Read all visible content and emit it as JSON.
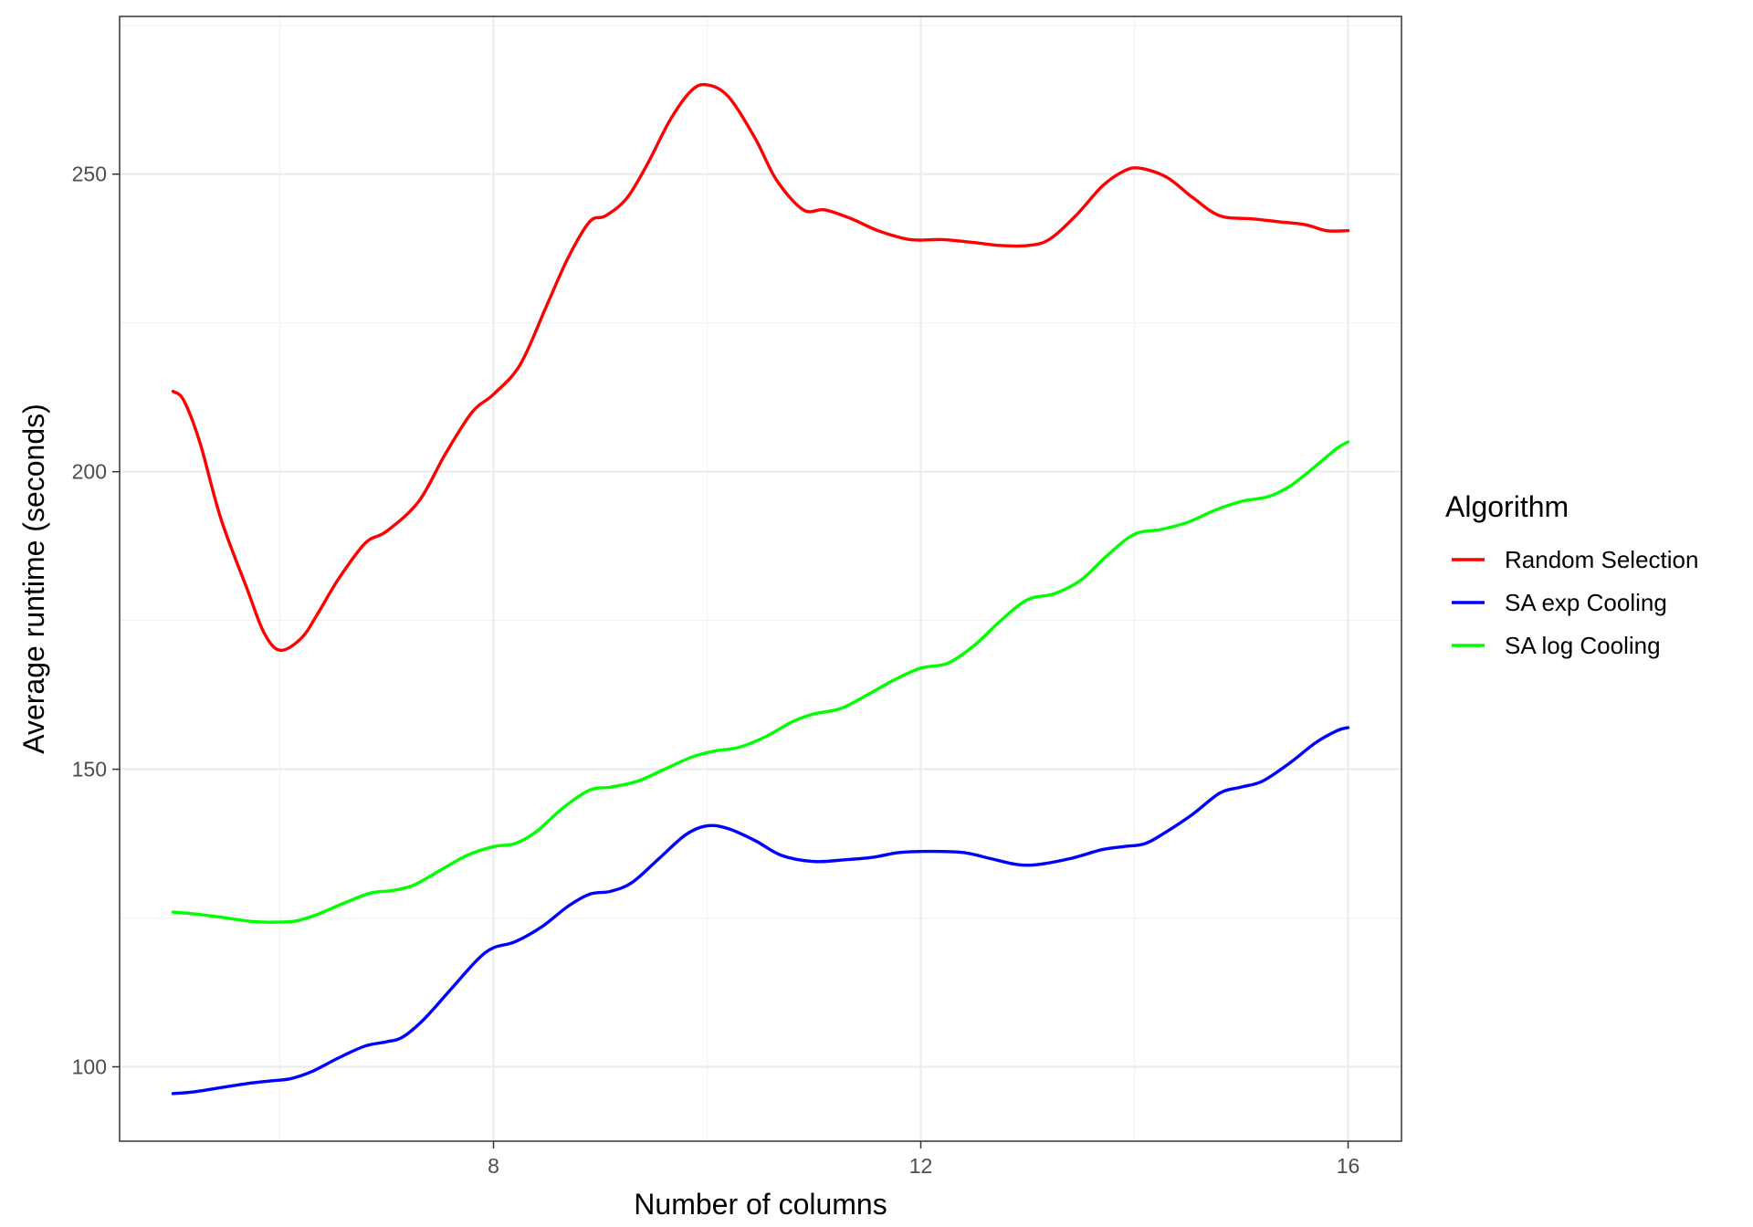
{
  "chart_data": {
    "type": "line",
    "title": "",
    "xlabel": "Number of columns",
    "ylabel": "Average runtime (seconds)",
    "xlim": [
      4.5,
      16.5
    ],
    "ylim": [
      87.5,
      276.5
    ],
    "x_ticks": [
      8,
      12,
      16
    ],
    "y_ticks": [
      100,
      150,
      200,
      250
    ],
    "x_tick_labels": [
      "8",
      "12",
      "16"
    ],
    "y_tick_labels": [
      "100",
      "150",
      "200",
      "250"
    ],
    "grid": true,
    "legend": {
      "title": "Algorithm",
      "position": "right"
    },
    "series": [
      {
        "name": "Random Selection",
        "color": "#ff0000",
        "points": [
          [
            5,
            213.5
          ],
          [
            5.1,
            212
          ],
          [
            5.25,
            205
          ],
          [
            5.45,
            192
          ],
          [
            5.7,
            180
          ],
          [
            5.85,
            173
          ],
          [
            6,
            170
          ],
          [
            6.2,
            172
          ],
          [
            6.35,
            176
          ],
          [
            6.55,
            182
          ],
          [
            6.8,
            188
          ],
          [
            7,
            190
          ],
          [
            7.3,
            195
          ],
          [
            7.55,
            203
          ],
          [
            7.8,
            210
          ],
          [
            8,
            213
          ],
          [
            8.25,
            218
          ],
          [
            8.5,
            228
          ],
          [
            8.7,
            236
          ],
          [
            8.9,
            242
          ],
          [
            9.05,
            243
          ],
          [
            9.25,
            246
          ],
          [
            9.45,
            252
          ],
          [
            9.65,
            259
          ],
          [
            9.85,
            264
          ],
          [
            10,
            265
          ],
          [
            10.2,
            263
          ],
          [
            10.45,
            256
          ],
          [
            10.65,
            249
          ],
          [
            10.9,
            244
          ],
          [
            11.1,
            244
          ],
          [
            11.35,
            242.5
          ],
          [
            11.6,
            240.5
          ],
          [
            11.9,
            239
          ],
          [
            12.2,
            239
          ],
          [
            12.5,
            238.5
          ],
          [
            12.75,
            238
          ],
          [
            13,
            238
          ],
          [
            13.2,
            239
          ],
          [
            13.45,
            243
          ],
          [
            13.7,
            248
          ],
          [
            13.9,
            250.5
          ],
          [
            14.05,
            251
          ],
          [
            14.3,
            249.5
          ],
          [
            14.55,
            246
          ],
          [
            14.8,
            243
          ],
          [
            15.1,
            242.5
          ],
          [
            15.35,
            242
          ],
          [
            15.6,
            241.5
          ],
          [
            15.8,
            240.5
          ],
          [
            16,
            240.5
          ]
        ]
      },
      {
        "name": "SA exp Cooling",
        "color": "#0000ff",
        "points": [
          [
            5,
            95.5
          ],
          [
            5.2,
            95.8
          ],
          [
            5.45,
            96.5
          ],
          [
            5.7,
            97.2
          ],
          [
            5.9,
            97.6
          ],
          [
            6.1,
            98
          ],
          [
            6.3,
            99.2
          ],
          [
            6.55,
            101.5
          ],
          [
            6.8,
            103.5
          ],
          [
            7,
            104.2
          ],
          [
            7.15,
            105
          ],
          [
            7.35,
            108
          ],
          [
            7.6,
            113
          ],
          [
            7.85,
            118
          ],
          [
            8,
            120
          ],
          [
            8.2,
            121
          ],
          [
            8.45,
            123.5
          ],
          [
            8.7,
            127
          ],
          [
            8.9,
            129
          ],
          [
            9.1,
            129.5
          ],
          [
            9.3,
            131
          ],
          [
            9.55,
            135
          ],
          [
            9.8,
            139
          ],
          [
            10,
            140.5
          ],
          [
            10.2,
            140
          ],
          [
            10.45,
            138
          ],
          [
            10.7,
            135.5
          ],
          [
            11,
            134.5
          ],
          [
            11.3,
            134.8
          ],
          [
            11.55,
            135.2
          ],
          [
            11.8,
            136
          ],
          [
            12.1,
            136.2
          ],
          [
            12.4,
            136
          ],
          [
            12.65,
            135
          ],
          [
            12.9,
            134
          ],
          [
            13.1,
            134
          ],
          [
            13.4,
            135
          ],
          [
            13.7,
            136.5
          ],
          [
            13.9,
            137
          ],
          [
            14.1,
            137.5
          ],
          [
            14.3,
            139.5
          ],
          [
            14.55,
            142.5
          ],
          [
            14.8,
            146
          ],
          [
            15,
            147
          ],
          [
            15.2,
            148
          ],
          [
            15.45,
            151
          ],
          [
            15.7,
            154.5
          ],
          [
            15.9,
            156.5
          ],
          [
            16,
            157
          ]
        ]
      },
      {
        "name": "SA log Cooling",
        "color": "#00ff00",
        "points": [
          [
            5,
            126
          ],
          [
            5.25,
            125.6
          ],
          [
            5.5,
            125
          ],
          [
            5.75,
            124.4
          ],
          [
            5.95,
            124.3
          ],
          [
            6.15,
            124.5
          ],
          [
            6.35,
            125.6
          ],
          [
            6.6,
            127.5
          ],
          [
            6.85,
            129.2
          ],
          [
            7.05,
            129.6
          ],
          [
            7.25,
            130.5
          ],
          [
            7.5,
            133
          ],
          [
            7.75,
            135.5
          ],
          [
            8,
            137
          ],
          [
            8.2,
            137.5
          ],
          [
            8.4,
            139.5
          ],
          [
            8.65,
            143.5
          ],
          [
            8.9,
            146.5
          ],
          [
            9.1,
            147
          ],
          [
            9.35,
            148
          ],
          [
            9.6,
            150
          ],
          [
            9.85,
            152
          ],
          [
            10.05,
            153
          ],
          [
            10.3,
            153.7
          ],
          [
            10.55,
            155.5
          ],
          [
            10.8,
            158
          ],
          [
            11,
            159.3
          ],
          [
            11.25,
            160.2
          ],
          [
            11.5,
            162.5
          ],
          [
            11.75,
            165
          ],
          [
            12,
            167
          ],
          [
            12.25,
            167.8
          ],
          [
            12.5,
            170.8
          ],
          [
            12.75,
            175
          ],
          [
            13,
            178.5
          ],
          [
            13.25,
            179.5
          ],
          [
            13.5,
            181.8
          ],
          [
            13.75,
            186
          ],
          [
            14,
            189.5
          ],
          [
            14.25,
            190.3
          ],
          [
            14.5,
            191.5
          ],
          [
            14.75,
            193.5
          ],
          [
            15,
            195
          ],
          [
            15.25,
            195.8
          ],
          [
            15.45,
            197.5
          ],
          [
            15.7,
            201
          ],
          [
            15.9,
            204
          ],
          [
            16,
            205
          ]
        ]
      }
    ]
  }
}
